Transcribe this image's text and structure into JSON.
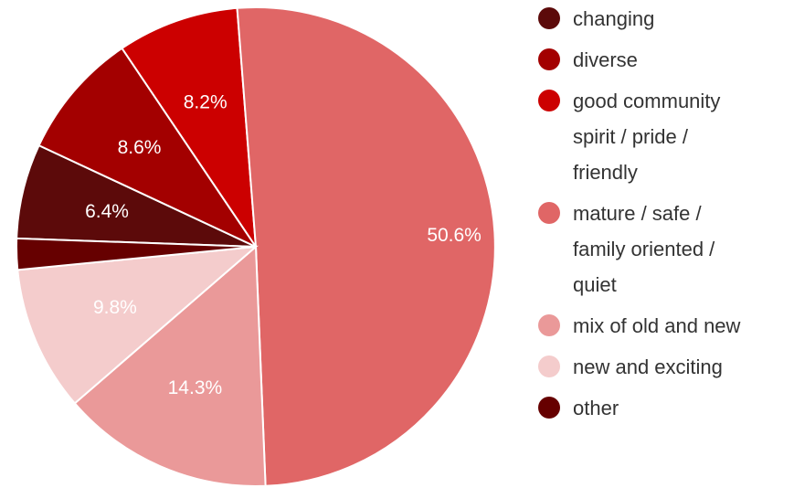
{
  "chart_data": {
    "type": "pie",
    "slices": [
      {
        "label": "changing",
        "value": 6.4,
        "display": "6.4%",
        "color": "#5c0a0a"
      },
      {
        "label": "diverse",
        "value": 8.6,
        "display": "8.6%",
        "color": "#a30000"
      },
      {
        "label": "good community spirit / pride / friendly",
        "value": 8.2,
        "display": "8.2%",
        "color": "#cc0000"
      },
      {
        "label": "mature / safe / family oriented / quiet",
        "value": 50.6,
        "display": "50.6%",
        "color": "#e06666"
      },
      {
        "label": "mix of old and new",
        "value": 14.3,
        "display": "14.3%",
        "color": "#ea9999"
      },
      {
        "label": "new and exciting",
        "value": 9.8,
        "display": "9.8%",
        "color": "#f4cccc"
      },
      {
        "label": "other",
        "value": 2.1,
        "display": "",
        "color": "#660000"
      }
    ],
    "legend": {
      "position": "right",
      "entries": [
        {
          "lines": [
            "changing"
          ],
          "color": "#5c0a0a"
        },
        {
          "lines": [
            "diverse"
          ],
          "color": "#a30000"
        },
        {
          "lines": [
            "good community",
            "spirit / pride /",
            "friendly"
          ],
          "color": "#cc0000"
        },
        {
          "lines": [
            "mature / safe /",
            "family oriented /",
            "quiet"
          ],
          "color": "#e06666"
        },
        {
          "lines": [
            "mix of old and new"
          ],
          "color": "#ea9999"
        },
        {
          "lines": [
            "new and exciting"
          ],
          "color": "#f4cccc"
        },
        {
          "lines": [
            "other"
          ],
          "color": "#660000"
        }
      ]
    }
  }
}
